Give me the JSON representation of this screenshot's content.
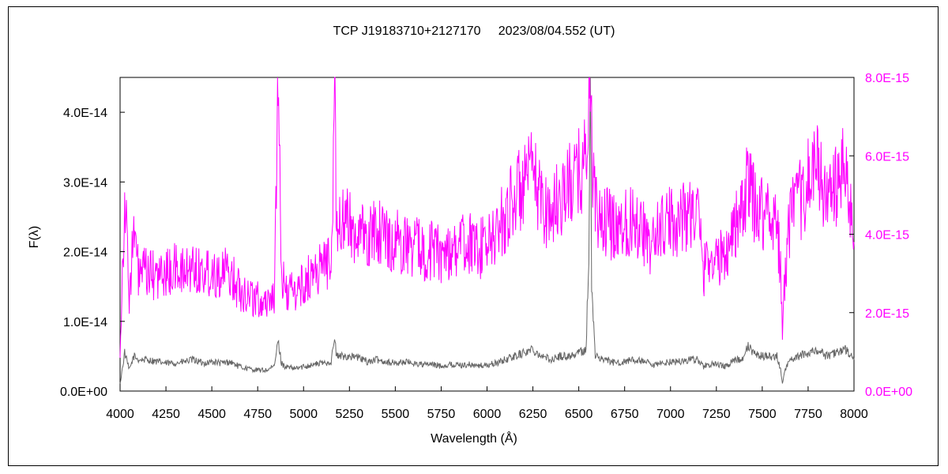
{
  "chart_data": {
    "type": "line",
    "title": "TCP J19183710+2127170     2023/08/04.552 (UT)",
    "xlabel": "Wavelength (Å)",
    "ylabel": "F(λ)",
    "xlim": [
      4000,
      8000
    ],
    "ylim_left": [
      0,
      4.5e-14
    ],
    "ylim_right": [
      0,
      8e-15
    ],
    "x_ticks": [
      "4000",
      "4250",
      "4500",
      "4750",
      "5000",
      "5250",
      "5500",
      "5750",
      "6000",
      "6250",
      "6500",
      "6750",
      "7000",
      "7250",
      "7500",
      "7750",
      "8000"
    ],
    "y_left_ticks": [
      "0.0E+00",
      "1.0E-14",
      "2.0E-14",
      "3.0E-14",
      "4.0E-14"
    ],
    "y_left_tick_values": [
      0,
      1e-14,
      2e-14,
      3e-14,
      4e-14
    ],
    "y_right_ticks": [
      "0.0E+00",
      "2.0E-15",
      "4.0E-15",
      "6.0E-15",
      "8.0E-15"
    ],
    "y_right_tick_values": [
      0,
      2e-15,
      4e-15,
      6e-15,
      8e-15
    ],
    "grid": false,
    "colors": {
      "series_left": "#666666",
      "series_right": "#ff00ff",
      "right_axis": "#ff00ff"
    },
    "series": [
      {
        "axis": "left",
        "x": [
          4000,
          4025,
          4050,
          4075,
          4100,
          4150,
          4200,
          4250,
          4300,
          4350,
          4400,
          4450,
          4500,
          4550,
          4600,
          4650,
          4700,
          4750,
          4800,
          4840,
          4861,
          4880,
          4900,
          4950,
          5000,
          5050,
          5100,
          5150,
          5169,
          5180,
          5200,
          5250,
          5300,
          5350,
          5400,
          5450,
          5500,
          5550,
          5600,
          5650,
          5700,
          5750,
          5800,
          5850,
          5900,
          5950,
          6000,
          6050,
          6100,
          6150,
          6200,
          6250,
          6300,
          6350,
          6400,
          6450,
          6500,
          6540,
          6555,
          6563,
          6570,
          6590,
          6650,
          6700,
          6750,
          6800,
          6850,
          6880,
          6900,
          6950,
          7000,
          7050,
          7100,
          7150,
          7180,
          7200,
          7250,
          7300,
          7350,
          7400,
          7420,
          7450,
          7500,
          7550,
          7580,
          7600,
          7610,
          7620,
          7640,
          7660,
          7700,
          7750,
          7800,
          7850,
          7900,
          7950,
          8000
        ],
        "y": [
          1e-15,
          5.5e-15,
          3e-15,
          5e-15,
          4.5e-15,
          4.5e-15,
          4.2e-15,
          4e-15,
          4e-15,
          4.2e-15,
          4.5e-15,
          4e-15,
          4.2e-15,
          4e-15,
          4.2e-15,
          3.5e-15,
          3.2e-15,
          3e-15,
          3e-15,
          3.5e-15,
          7.2e-15,
          4e-15,
          3.5e-15,
          3.2e-15,
          3.5e-15,
          3.8e-15,
          4e-15,
          4.2e-15,
          7.5e-15,
          5e-15,
          5e-15,
          5e-15,
          4.8e-15,
          4.2e-15,
          4.5e-15,
          4.2e-15,
          4e-15,
          4.2e-15,
          4e-15,
          3.8e-15,
          3.8e-15,
          3.6e-15,
          3.8e-15,
          3.7e-15,
          3.8e-15,
          3.6e-15,
          3.7e-15,
          4e-15,
          4.5e-15,
          5e-15,
          5.5e-15,
          6e-15,
          5e-15,
          4.5e-15,
          5e-15,
          5e-15,
          5.5e-15,
          6e-15,
          2e-14,
          4.4e-14,
          1.5e-14,
          5e-15,
          4.5e-15,
          4e-15,
          4.2e-15,
          4.5e-15,
          4.2e-15,
          4e-15,
          3.5e-15,
          4e-15,
          4.2e-15,
          4.2e-15,
          4.5e-15,
          4.5e-15,
          3.5e-15,
          3.8e-15,
          3.8e-15,
          3.5e-15,
          4.5e-15,
          4.5e-15,
          6.5e-15,
          5.5e-15,
          5e-15,
          5e-15,
          5e-15,
          3e-15,
          1e-15,
          2.5e-15,
          4e-15,
          4.5e-15,
          5e-15,
          5.5e-15,
          6e-15,
          5e-15,
          5.5e-15,
          6e-15,
          4.5e-15
        ]
      },
      {
        "axis": "right",
        "x": [
          4000,
          4025,
          4050,
          4075,
          4100,
          4150,
          4200,
          4250,
          4300,
          4350,
          4400,
          4450,
          4500,
          4550,
          4600,
          4650,
          4700,
          4750,
          4800,
          4840,
          4861,
          4880,
          4900,
          4950,
          5000,
          5050,
          5100,
          5150,
          5169,
          5180,
          5200,
          5250,
          5300,
          5350,
          5400,
          5450,
          5500,
          5550,
          5600,
          5650,
          5700,
          5750,
          5800,
          5850,
          5900,
          5950,
          6000,
          6050,
          6100,
          6150,
          6200,
          6250,
          6300,
          6350,
          6400,
          6450,
          6500,
          6540,
          6555,
          6563,
          6570,
          6590,
          6650,
          6700,
          6750,
          6800,
          6850,
          6880,
          6900,
          6950,
          7000,
          7050,
          7100,
          7150,
          7180,
          7200,
          7250,
          7300,
          7350,
          7400,
          7420,
          7450,
          7500,
          7550,
          7580,
          7600,
          7610,
          7620,
          7640,
          7660,
          7700,
          7750,
          7800,
          7850,
          7900,
          7950,
          8000
        ],
        "y": [
          1e-15,
          5e-15,
          2.5e-15,
          4e-15,
          3e-15,
          3e-15,
          2.9e-15,
          3e-15,
          3.1e-15,
          3e-15,
          3.2e-15,
          3e-15,
          3.1e-15,
          3e-15,
          3e-15,
          2.6e-15,
          2.5e-15,
          2.3e-15,
          2.3e-15,
          2.5e-15,
          7.3e-15,
          3e-15,
          2.6e-15,
          2.5e-15,
          2.7e-15,
          3e-15,
          3.2e-15,
          3.4e-15,
          7.5e-15,
          4.5e-15,
          4.2e-15,
          4.3e-15,
          4e-15,
          3.8e-15,
          4.2e-15,
          3.9e-15,
          3.8e-15,
          3.8e-15,
          3.7e-15,
          3.6e-15,
          3.6e-15,
          3.5e-15,
          3.6e-15,
          3.7e-15,
          3.8e-15,
          3.6e-15,
          3.7e-15,
          4e-15,
          4.5e-15,
          5e-15,
          5.2e-15,
          5.5e-15,
          4.8e-15,
          4.5e-15,
          5e-15,
          5.2e-15,
          5.5e-15,
          6e-15,
          7.5e-15,
          8e-15,
          6.5e-15,
          4.5e-15,
          4.3e-15,
          4.2e-15,
          4.3e-15,
          4.4e-15,
          4.2e-15,
          3.5e-15,
          3.8e-15,
          4.2e-15,
          4.3e-15,
          4.4e-15,
          4.6e-15,
          4.5e-15,
          3e-15,
          3.5e-15,
          3.3e-15,
          3.5e-15,
          4.3e-15,
          4.5e-15,
          5.5e-15,
          4.8e-15,
          4.6e-15,
          4.5e-15,
          4.4e-15,
          3e-15,
          1.5e-15,
          2.5e-15,
          4e-15,
          4.5e-15,
          4.8e-15,
          5.3e-15,
          5.8e-15,
          4.8e-15,
          5.2e-15,
          5.6e-15,
          3.8e-15
        ]
      }
    ]
  }
}
